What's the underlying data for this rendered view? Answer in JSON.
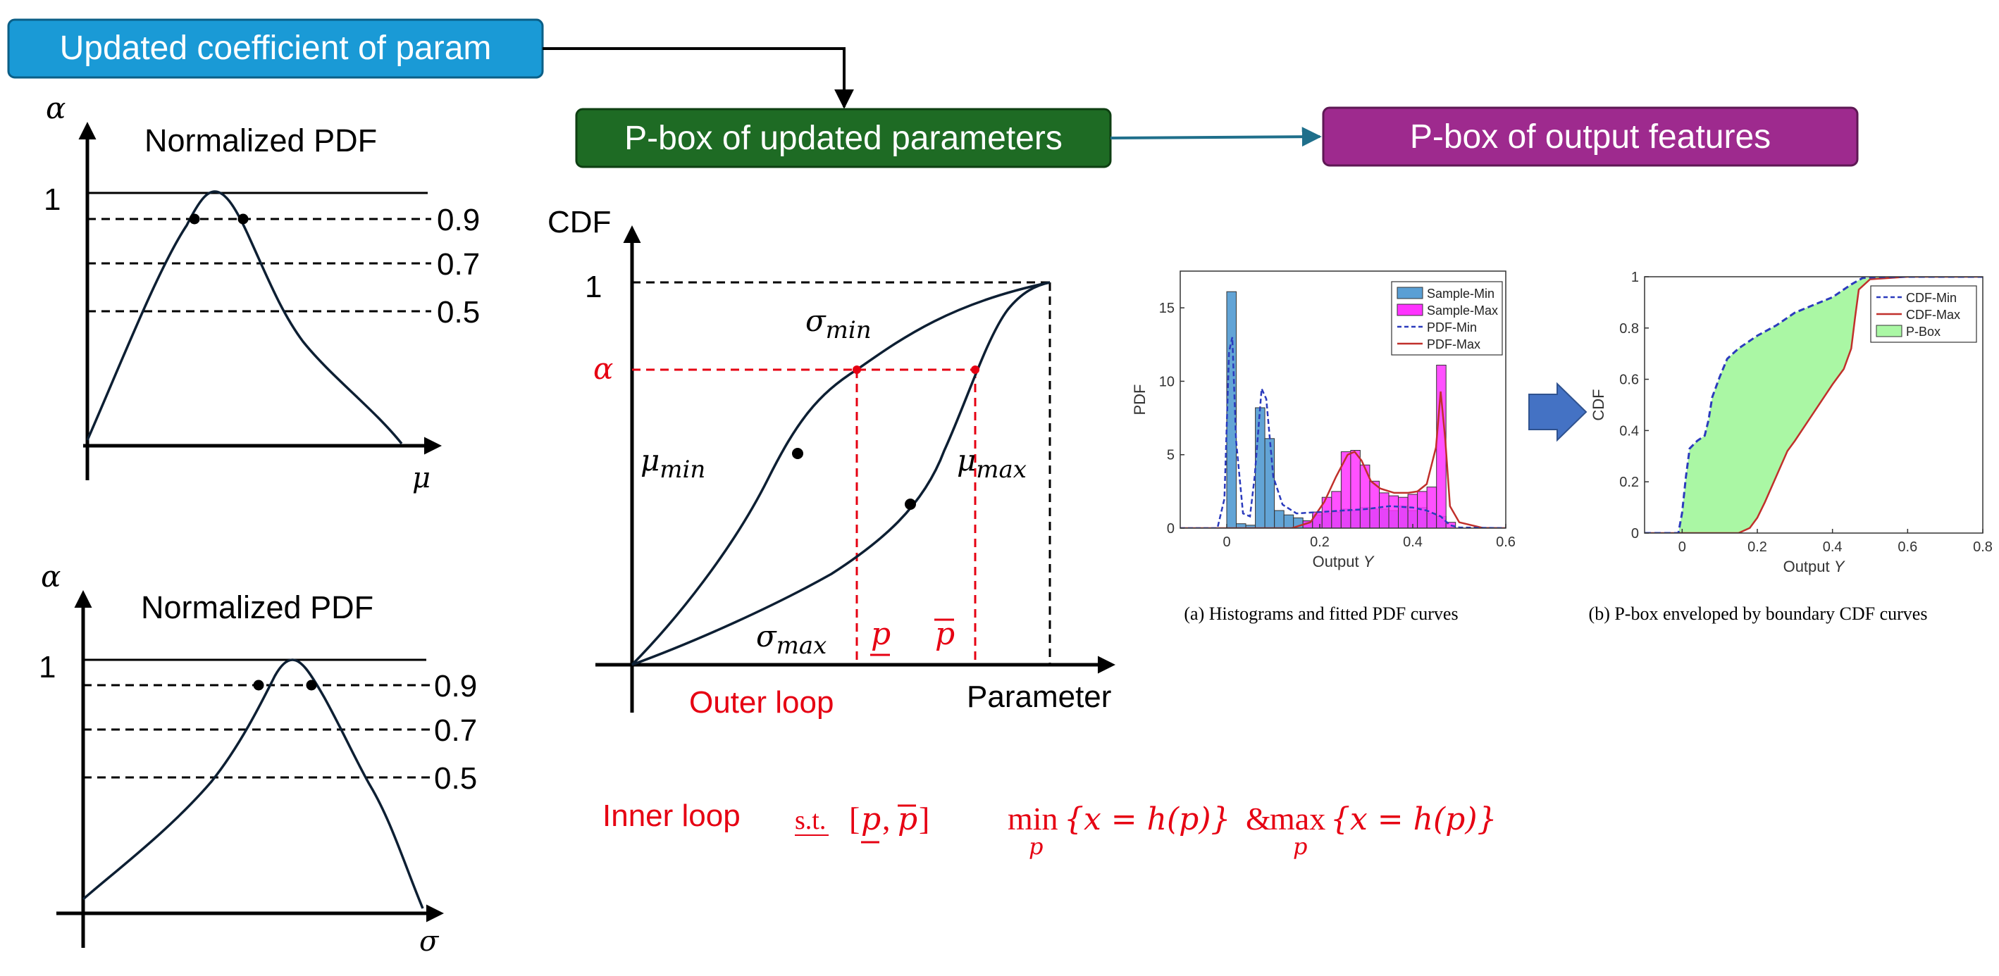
{
  "boxes": {
    "updated_coeff": {
      "label": "Updated coefficient of param",
      "color": "#1a9ad6"
    },
    "pbox_params": {
      "label": "P-box of updated parameters",
      "color": "#1e6b24"
    },
    "pbox_output": {
      "label": "P-box of output features",
      "color": "#9e2a8e"
    }
  },
  "pdf_top": {
    "title": "Normalized PDF",
    "y_symbol": "α",
    "x_symbol": "μ",
    "one_label": "1",
    "levels": [
      "0.9",
      "0.7",
      "0.5"
    ]
  },
  "pdf_bottom": {
    "title": "Normalized PDF",
    "y_symbol": "α",
    "x_symbol": "σ",
    "one_label": "1",
    "levels": [
      "0.9",
      "0.7",
      "0.5"
    ]
  },
  "cdf": {
    "y_label": "CDF",
    "x_label": "Parameter",
    "one_label": "1",
    "alpha_label": "α",
    "sigma_min": "σ",
    "sigma_min_sub": "min",
    "sigma_max": "σ",
    "sigma_max_sub": "max",
    "mu_min": "μ",
    "mu_min_sub": "min",
    "mu_max": "μ",
    "mu_max_sub": "max",
    "p_lower": "p",
    "p_upper": "p",
    "outer_loop": "Outer loop"
  },
  "inner_loop": {
    "label": "Inner loop",
    "st": "s.t.",
    "bracket_open": "[",
    "comma": ",",
    "bracket_close": "]",
    "min_text": "min",
    "min_sub": "p",
    "min_body": "{x = h(p)}",
    "amp": "&",
    "max_text": "max",
    "max_sub": "p",
    "max_body": "{x = h(p)}"
  },
  "colors": {
    "red": "#e60012",
    "dark": "#0d1f33",
    "arrow_blue": "#4472c4"
  },
  "chart_data": [
    {
      "type": "bar",
      "caption": "(a) Histograms and fitted PDF curves",
      "ylabel": "PDF",
      "xlabel": "Output",
      "xlabel_italic": "Y",
      "xlim": [
        -0.1,
        0.6
      ],
      "ylim": [
        0,
        17.5
      ],
      "x_ticks": [
        "0",
        "0.2",
        "0.4",
        "0.6"
      ],
      "y_ticks": [
        "0",
        "5",
        "10",
        "15"
      ],
      "legend": [
        "Sample-Min",
        "Sample-Max",
        "PDF-Min",
        "PDF-Max"
      ],
      "legend_position": "top-right",
      "bin_width": 0.0205,
      "series": [
        {
          "name": "Sample-Min",
          "color": "#5a9fd4",
          "x": [
            0.0,
            0.0205,
            0.041,
            0.0615,
            0.082,
            0.1025,
            0.123,
            0.1435,
            0.164,
            0.1845,
            0.205,
            0.2255,
            0.246,
            0.2665,
            0.287,
            0.3075,
            0.328,
            0.3485,
            0.369,
            0.3895,
            0.41,
            0.4305,
            0.451
          ],
          "values": [
            16.1,
            0.3,
            0.2,
            8.2,
            6.1,
            1.2,
            0.9,
            0.7,
            0.5,
            0.9,
            1.0,
            1.1,
            1.3,
            1.2,
            1.4,
            1.3,
            1.3,
            1.2,
            1.5,
            1.2,
            1.4,
            1.0,
            0.8
          ]
        },
        {
          "name": "Sample-Max",
          "color": "#ff33ff",
          "x": [
            0.164,
            0.1845,
            0.205,
            0.2255,
            0.246,
            0.2665,
            0.287,
            0.3075,
            0.328,
            0.3485,
            0.369,
            0.3895,
            0.41,
            0.4305,
            0.451,
            0.4715
          ],
          "values": [
            0.5,
            1.1,
            2.1,
            2.5,
            5.2,
            5.3,
            4.3,
            3.2,
            2.4,
            2.2,
            2.1,
            2.3,
            2.5,
            2.8,
            11.1,
            0.4
          ]
        },
        {
          "name": "PDF-Min",
          "color": "#2b3bbd",
          "dashed": true,
          "x": [
            -0.1,
            -0.02,
            -0.005,
            0.005,
            0.012,
            0.02,
            0.035,
            0.05,
            0.06,
            0.075,
            0.085,
            0.1,
            0.12,
            0.15,
            0.2,
            0.25,
            0.3,
            0.35,
            0.4,
            0.43,
            0.46,
            0.48,
            0.5,
            0.6
          ],
          "values": [
            0,
            0,
            2.0,
            12.0,
            13.0,
            6.0,
            1.0,
            0.8,
            3.5,
            9.5,
            8.8,
            3.5,
            1.6,
            1.0,
            1.1,
            1.2,
            1.3,
            1.5,
            1.4,
            1.2,
            0.8,
            0.2,
            0.05,
            0
          ]
        },
        {
          "name": "PDF-Max",
          "color": "#c0302b",
          "x": [
            -0.1,
            0.14,
            0.18,
            0.21,
            0.235,
            0.26,
            0.275,
            0.29,
            0.31,
            0.33,
            0.36,
            0.39,
            0.41,
            0.43,
            0.45,
            0.46,
            0.47,
            0.48,
            0.5,
            0.55,
            0.6
          ],
          "values": [
            0,
            0,
            0.4,
            1.8,
            3.5,
            5.0,
            5.2,
            4.6,
            3.2,
            2.7,
            2.4,
            2.4,
            2.5,
            3.0,
            5.5,
            9.3,
            6.0,
            1.5,
            0.4,
            0.02,
            0
          ]
        }
      ]
    },
    {
      "type": "area",
      "caption": "(b) P-box enveloped by boundary CDF curves",
      "ylabel": "CDF",
      "xlabel": "Output",
      "xlabel_italic": "Y",
      "xlim": [
        -0.1,
        0.8
      ],
      "ylim": [
        0,
        1
      ],
      "x_ticks": [
        "0",
        "0.2",
        "0.4",
        "0.6",
        "0.8"
      ],
      "y_ticks": [
        "0",
        "0.2",
        "0.4",
        "0.6",
        "0.8",
        "1"
      ],
      "legend": [
        "CDF-Min",
        "CDF-Max",
        "P-Box"
      ],
      "legend_position": "top-right",
      "series": [
        {
          "name": "CDF-Min",
          "color": "#2b3bbd",
          "dashed": true,
          "x": [
            -0.1,
            -0.01,
            0.0,
            0.01,
            0.02,
            0.04,
            0.06,
            0.07,
            0.08,
            0.1,
            0.12,
            0.15,
            0.2,
            0.25,
            0.3,
            0.35,
            0.4,
            0.45,
            0.48,
            0.52,
            0.6,
            0.7,
            0.8
          ],
          "values": [
            0,
            0,
            0.08,
            0.22,
            0.33,
            0.36,
            0.38,
            0.44,
            0.53,
            0.61,
            0.68,
            0.72,
            0.77,
            0.81,
            0.86,
            0.89,
            0.92,
            0.97,
            0.995,
            0.999,
            1,
            1,
            1
          ]
        },
        {
          "name": "CDF-Max",
          "color": "#c0302b",
          "x": [
            -0.1,
            0.15,
            0.18,
            0.2,
            0.22,
            0.25,
            0.28,
            0.3,
            0.35,
            0.4,
            0.43,
            0.45,
            0.46,
            0.47,
            0.5,
            0.6,
            0.7,
            0.8
          ],
          "values": [
            0,
            0,
            0.02,
            0.06,
            0.12,
            0.22,
            0.32,
            0.36,
            0.47,
            0.58,
            0.64,
            0.72,
            0.84,
            0.95,
            0.99,
            1,
            1,
            1
          ]
        },
        {
          "name": "P-Box",
          "color": "#aaf7a4"
        }
      ]
    }
  ]
}
